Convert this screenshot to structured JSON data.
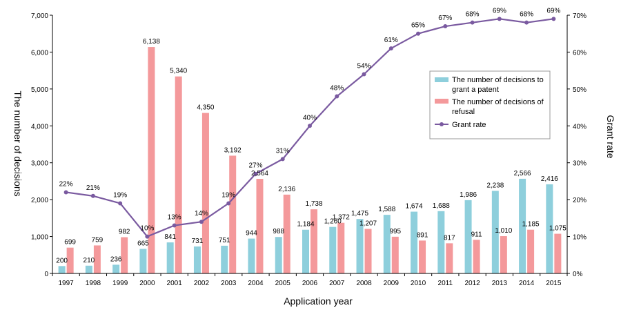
{
  "chart_data": {
    "type": "bar",
    "categories": [
      "1997",
      "1998",
      "1999",
      "2000",
      "2001",
      "2002",
      "2003",
      "2004",
      "2005",
      "2006",
      "2007",
      "2008",
      "2009",
      "2010",
      "2011",
      "2012",
      "2013",
      "2014",
      "2015"
    ],
    "series": [
      {
        "name": "The number of decisions to grant a patent",
        "type": "bar",
        "axis": "left",
        "color": "#8ecfdc",
        "values": [
          200,
          210,
          236,
          665,
          841,
          731,
          751,
          944,
          988,
          1184,
          1260,
          1475,
          1588,
          1674,
          1688,
          1986,
          2238,
          2566,
          2416
        ],
        "labels": [
          "200",
          "210",
          "236",
          "665",
          "841",
          "731",
          "751",
          "944",
          "988",
          "1,184",
          "1,260",
          "1,475",
          "1,588",
          "1,674",
          "1,688",
          "1,986",
          "2,238",
          "2,566",
          "2,416"
        ]
      },
      {
        "name": "The number of decisions of refusal",
        "type": "bar",
        "axis": "left",
        "color": "#f4999b",
        "values": [
          699,
          759,
          982,
          6138,
          5340,
          4350,
          3192,
          2564,
          2136,
          1738,
          1372,
          1207,
          995,
          891,
          817,
          911,
          1010,
          1185,
          1075
        ],
        "labels": [
          "699",
          "759",
          "982",
          "6,138",
          "5,340",
          "4,350",
          "3,192",
          "2,564",
          "2,136",
          "1,738",
          "1,372",
          "1,207",
          "995",
          "891",
          "817",
          "911",
          "1,010",
          "1,185",
          "1,075"
        ]
      },
      {
        "name": "Grant rate",
        "type": "line",
        "axis": "right",
        "color": "#7a5aa0",
        "values": [
          22,
          21,
          19,
          10,
          13,
          14,
          19,
          27,
          31,
          40,
          48,
          54,
          61,
          65,
          67,
          68,
          69,
          68,
          69
        ],
        "labels": [
          "22%",
          "21%",
          "19%",
          "10%",
          "13%",
          "14%",
          "19%",
          "27%",
          "31%",
          "40%",
          "48%",
          "54%",
          "61%",
          "65%",
          "67%",
          "68%",
          "69%",
          "68%",
          "69%"
        ]
      }
    ],
    "xlabel": "Application year",
    "ylabel": "The number of decisions",
    "y2label": "Grant rate",
    "ylim": [
      0,
      7000
    ],
    "y2lim": [
      0,
      70
    ],
    "yticks": [
      "0",
      "1,000",
      "2,000",
      "3,000",
      "4,000",
      "5,000",
      "6,000",
      "7,000"
    ],
    "y2ticks": [
      "0%",
      "10%",
      "20%",
      "30%",
      "40%",
      "50%",
      "60%",
      "70%"
    ],
    "legend": {
      "placement": "right",
      "entries": [
        {
          "line1": "The number of decisions to",
          "line2": "grant a patent"
        },
        {
          "line1": "The number of decisions of",
          "line2": "refusal"
        },
        {
          "line1": "Grant rate",
          "line2": ""
        }
      ]
    },
    "grid": false
  }
}
